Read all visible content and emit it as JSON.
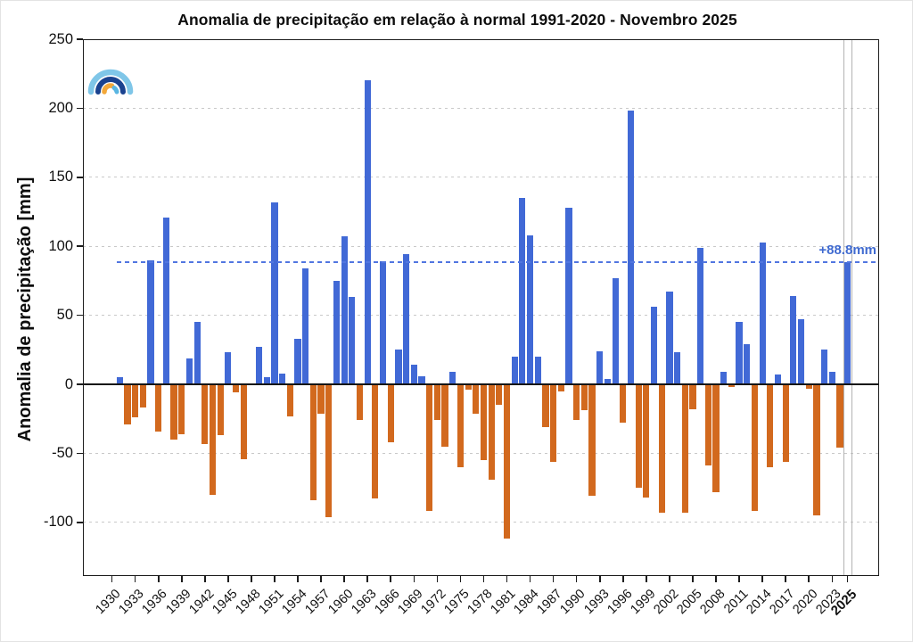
{
  "title": "Anomalia de precipitação em relação à normal 1991-2020 - Novembro 2025",
  "y_axis_label": "Anomalia de precipitação [mm]",
  "mean_line": {
    "value": 88.8,
    "label": "+88.8mm"
  },
  "colors": {
    "positive_bar": "#4169d6",
    "negative_bar": "#d2691e",
    "mean_line": "#5176e0",
    "mean_label": "#3f6ad0",
    "grid": "#c9c9c9",
    "zero_line": "#151515",
    "highlight_lines": "#b3b3b3"
  },
  "logo": {
    "name": "weather-service-rainbow-logo",
    "colors": [
      "#7fc6e8",
      "#1a428f",
      "#f3a83a"
    ]
  },
  "chart_data": {
    "type": "bar",
    "title": "Anomalia de precipitação em relação à normal 1991-2020 - Novembro 2025",
    "xlabel": "",
    "ylabel": "Anomalia de precipitação [mm]",
    "ylim": [
      -139,
      250
    ],
    "yticks": [
      250,
      200,
      150,
      100,
      50,
      0,
      -50,
      -100
    ],
    "ytick_labels": [
      "250",
      "200",
      "150",
      "100",
      "50",
      "0",
      "-50",
      "-100"
    ],
    "xtick_years": [
      1930,
      1933,
      1936,
      1939,
      1942,
      1945,
      1948,
      1951,
      1954,
      1957,
      1960,
      1963,
      1966,
      1969,
      1972,
      1975,
      1978,
      1981,
      1984,
      1987,
      1990,
      1993,
      1996,
      1999,
      2002,
      2005,
      2008,
      2011,
      2014,
      2017,
      2020,
      2023,
      2025
    ],
    "grid": "horizontal-dashed",
    "legend": "none",
    "reference_line_value": 88.8,
    "reference_line_label": "+88.8mm",
    "highlight_year": 2025,
    "years": [
      1930,
      1931,
      1932,
      1933,
      1934,
      1935,
      1936,
      1937,
      1938,
      1939,
      1940,
      1941,
      1942,
      1943,
      1944,
      1945,
      1946,
      1947,
      1948,
      1949,
      1950,
      1951,
      1952,
      1953,
      1954,
      1955,
      1956,
      1957,
      1958,
      1959,
      1960,
      1961,
      1962,
      1963,
      1964,
      1965,
      1966,
      1967,
      1968,
      1969,
      1970,
      1971,
      1972,
      1973,
      1974,
      1975,
      1976,
      1977,
      1978,
      1979,
      1980,
      1981,
      1982,
      1983,
      1984,
      1985,
      1986,
      1987,
      1988,
      1989,
      1990,
      1991,
      1992,
      1993,
      1994,
      1995,
      1996,
      1997,
      1998,
      1999,
      2000,
      2001,
      2002,
      2003,
      2004,
      2005,
      2006,
      2007,
      2008,
      2009,
      2010,
      2011,
      2012,
      2013,
      2014,
      2015,
      2016,
      2017,
      2018,
      2019,
      2020,
      2021,
      2022,
      2023,
      2024,
      2025
    ],
    "values": [
      0,
      5,
      -29,
      -24,
      -17,
      90,
      -34,
      121,
      -40,
      -36,
      19,
      45,
      -43,
      -80,
      -37,
      23,
      -6,
      -54,
      0,
      27,
      5,
      132,
      8,
      -23,
      33,
      84,
      -84,
      -21,
      -96,
      75,
      107,
      63,
      -26,
      220,
      -83,
      89,
      -42,
      25,
      94,
      14,
      6,
      -92,
      -26,
      -45,
      9,
      -60,
      -4,
      -21,
      -55,
      -69,
      -15,
      -112,
      20,
      135,
      108,
      20,
      -31,
      -56,
      -5,
      128,
      -26,
      -19,
      -81,
      24,
      4,
      77,
      -28,
      198,
      -75,
      -82,
      56,
      -93,
      67,
      23,
      -93,
      -18,
      99,
      -59,
      -78,
      9,
      -2,
      45,
      29,
      -92,
      103,
      -60,
      7,
      -56,
      64,
      47,
      -3,
      -95,
      25,
      9,
      -46,
      88.8
    ]
  }
}
